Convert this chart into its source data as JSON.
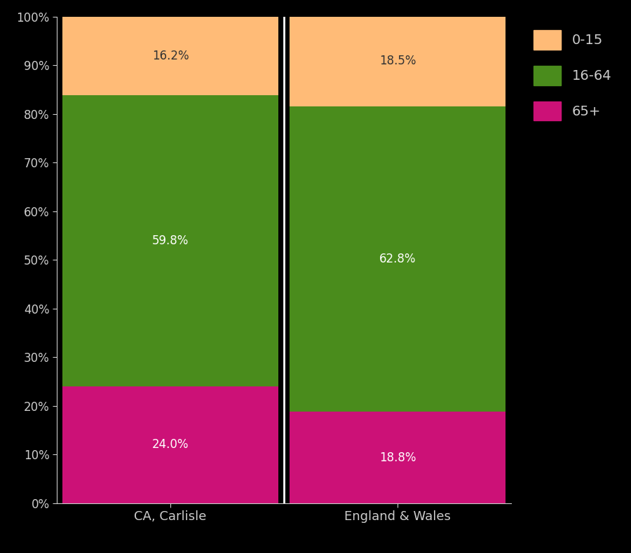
{
  "categories": [
    "CA, Carlisle",
    "England & Wales"
  ],
  "age_65plus": [
    24.0,
    18.8
  ],
  "age_16_64": [
    59.8,
    62.8
  ],
  "age_0_15": [
    16.2,
    18.5
  ],
  "color_0_15": "#FFBB77",
  "color_16_64": "#4A8C1C",
  "color_65plus": "#CC1177",
  "background_color": "#000000",
  "text_color": "#FFFFFF",
  "axis_text_color": "#CCCCCC",
  "label_color_65plus": "#FFFFFF",
  "label_color_16_64": "#FFFFFF",
  "label_color_0_15": "#333333",
  "bar_width": 0.95,
  "ylim": [
    0,
    100
  ],
  "ytick_labels": [
    "0%",
    "10%",
    "20%",
    "30%",
    "40%",
    "50%",
    "60%",
    "70%",
    "80%",
    "90%",
    "100%"
  ],
  "ytick_values": [
    0,
    10,
    20,
    30,
    40,
    50,
    60,
    70,
    80,
    90,
    100
  ],
  "legend_labels": [
    "0-15",
    "16-64",
    "65+"
  ],
  "figsize": [
    9.0,
    7.9
  ],
  "dpi": 100
}
